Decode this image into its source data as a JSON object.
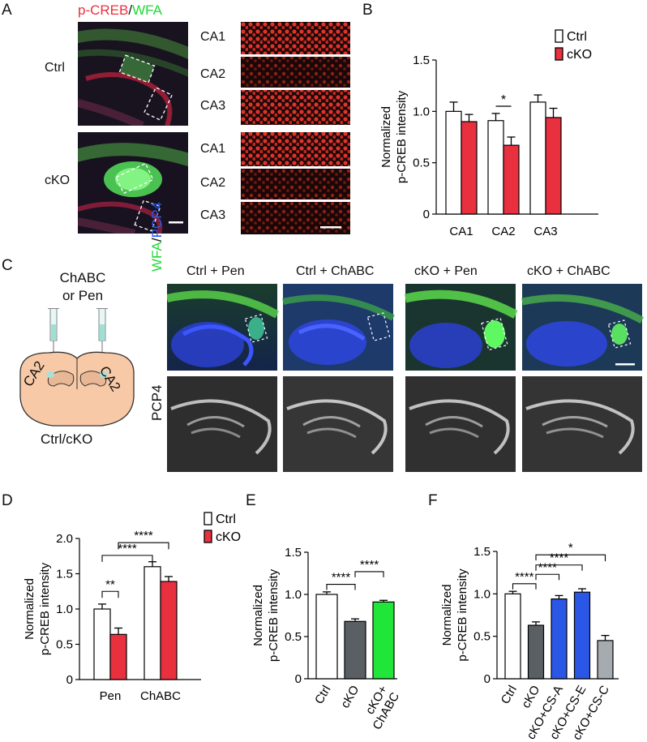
{
  "panels": {
    "A": "A",
    "B": "B",
    "C": "C",
    "D": "D",
    "E": "E",
    "F": "F"
  },
  "panelA": {
    "title_red": "p-CREB",
    "title_sep": "/",
    "title_green": "WFA",
    "group_ctrl": "Ctrl",
    "group_cko": "cKO",
    "regions": [
      "CA1",
      "CA2",
      "CA3",
      "CA1",
      "CA2",
      "CA3"
    ]
  },
  "panelC": {
    "injection_line1": "ChABC",
    "injection_line2": "or Pen",
    "brain_left": "CA2",
    "brain_right": "CA2",
    "genotype": "Ctrl/cKO",
    "columns": [
      "Ctrl + Pen",
      "Ctrl + ChABC",
      "cKO + Pen",
      "cKO + ChABC"
    ],
    "row1_green": "WFA",
    "row1_sep": "/",
    "row1_blue": "PCP4",
    "row2": "PCP4"
  },
  "colors": {
    "red": "#e8303f",
    "green": "#22e53a",
    "blue": "#2b57e6",
    "dark_gray": "#5a5f63",
    "light_gray": "#a6abb0"
  },
  "chart_data": [
    {
      "panel": "B",
      "type": "bar",
      "ylabel": [
        "Normalized",
        "p-CREB intensity"
      ],
      "categories": [
        "CA1",
        "CA2",
        "CA3"
      ],
      "ylim": [
        0,
        1.5
      ],
      "yticks": [
        0,
        0.5,
        1.0,
        1.5
      ],
      "ytick_labels": [
        "0",
        "0.5",
        "1.0",
        "1.5"
      ],
      "series": [
        {
          "name": "Ctrl",
          "values": [
            1.0,
            0.91,
            1.09
          ],
          "errors": [
            0.09,
            0.07,
            0.07
          ]
        },
        {
          "name": "cKO",
          "values": [
            0.9,
            0.67,
            0.94
          ],
          "errors": [
            0.07,
            0.08,
            0.09
          ]
        }
      ],
      "legend": "top-right",
      "annotations": [
        {
          "text": "*",
          "between": "CA2"
        }
      ]
    },
    {
      "panel": "D",
      "type": "bar",
      "ylabel": [
        "Normalized",
        "p-CREB intensity"
      ],
      "categories": [
        "Pen",
        "ChABC"
      ],
      "ylim": [
        0,
        2.0
      ],
      "yticks": [
        0,
        0.5,
        1.0,
        1.5,
        2.0
      ],
      "ytick_labels": [
        "0",
        "0.5",
        "1.0",
        "1.5",
        "2.0"
      ],
      "series": [
        {
          "name": "Ctrl",
          "values": [
            1.0,
            1.6
          ],
          "errors": [
            0.07,
            0.07
          ]
        },
        {
          "name": "cKO",
          "values": [
            0.64,
            1.39
          ],
          "errors": [
            0.09,
            0.07
          ]
        }
      ],
      "legend": "top-right",
      "annotations": [
        {
          "text": "**",
          "from": "Pen-Ctrl",
          "to": "Pen-cKO"
        },
        {
          "text": "****",
          "from": "Pen-Ctrl",
          "to": "ChABC-Ctrl"
        },
        {
          "text": "****",
          "from": "Pen-cKO",
          "to": "ChABC-cKO"
        }
      ]
    },
    {
      "panel": "E",
      "type": "bar",
      "ylabel": [
        "Normalized",
        "p-CREB intensity"
      ],
      "categories": [
        "Ctrl",
        "cKO",
        "cKO+ ChABC"
      ],
      "ylim": [
        0,
        1.5
      ],
      "yticks": [
        0,
        0.5,
        1.0,
        1.5
      ],
      "ytick_labels": [
        "0",
        "0.5",
        "1.0",
        "1.5"
      ],
      "values": [
        1.0,
        0.68,
        0.91
      ],
      "errors": [
        0.03,
        0.03,
        0.02
      ],
      "annotations": [
        {
          "text": "****",
          "from": 0,
          "to": 1
        },
        {
          "text": "****",
          "from": 1,
          "to": 2
        }
      ]
    },
    {
      "panel": "F",
      "type": "bar",
      "ylabel": [
        "Normalized",
        "p-CREB intensity"
      ],
      "categories": [
        "Ctrl",
        "cKO",
        "cKO+CS-A",
        "cKO+CS-E",
        "cKO+CS-C"
      ],
      "ylim": [
        0,
        1.5
      ],
      "yticks": [
        0,
        0.5,
        1.0,
        1.5
      ],
      "ytick_labels": [
        "0",
        "0.5",
        "1.0",
        "1.5"
      ],
      "values": [
        1.0,
        0.63,
        0.94,
        1.02,
        0.45
      ],
      "errors": [
        0.03,
        0.04,
        0.04,
        0.04,
        0.06
      ],
      "annotations": [
        {
          "text": "****",
          "from": 0,
          "to": 1
        },
        {
          "text": "****",
          "from": 1,
          "to": 2
        },
        {
          "text": "****",
          "from": 1,
          "to": 3
        },
        {
          "text": "*",
          "from": 1,
          "to": 4
        }
      ]
    }
  ]
}
